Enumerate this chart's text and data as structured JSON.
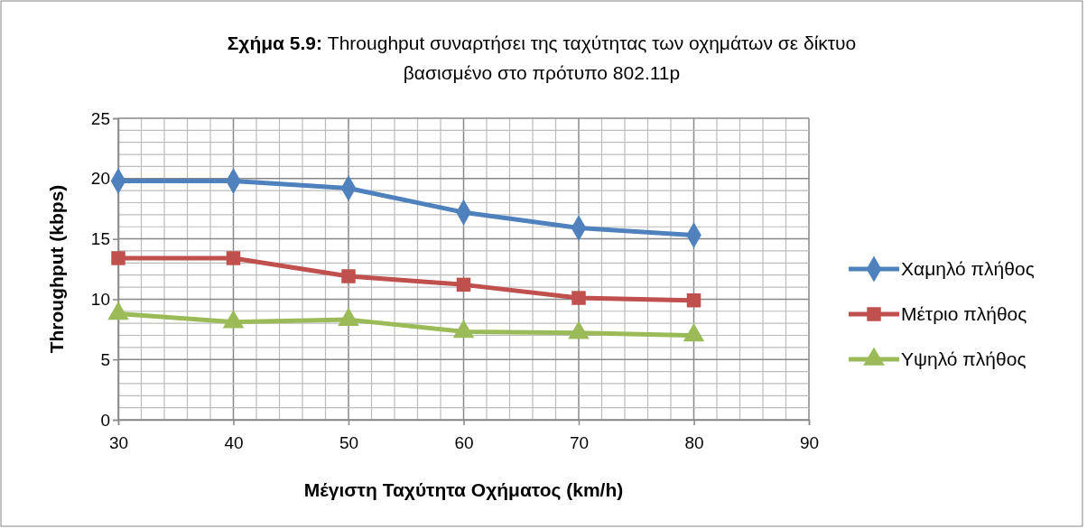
{
  "chart_data": {
    "type": "line",
    "title": "Σχήμα 5.9: Throughput συναρτήσει της ταχύτητας των οχημάτων σε δίκτυο βασισμένο στο πρότυπο 802.11p",
    "xlabel": "Μέγιστη Ταχύτητα Οχήματος (km/h)",
    "ylabel": "Throughput (kbps)",
    "x": [
      30,
      40,
      50,
      60,
      70,
      80
    ],
    "series": [
      {
        "name": "Χαμηλό πλήθος",
        "color": "#4f81bd",
        "marker": "diamond",
        "values": [
          19.8,
          19.8,
          19.2,
          17.2,
          15.9,
          15.3
        ]
      },
      {
        "name": "Μέτριο πλήθος",
        "color": "#c0504d",
        "marker": "square",
        "values": [
          13.4,
          13.4,
          11.9,
          11.2,
          10.1,
          9.9
        ]
      },
      {
        "name": "Υψηλό πλήθος",
        "color": "#9bbb59",
        "marker": "triangle",
        "values": [
          8.8,
          8.1,
          8.3,
          7.3,
          7.2,
          7.0
        ]
      }
    ],
    "xlim": [
      30,
      90
    ],
    "ylim": [
      0,
      25
    ],
    "xticks": [
      30,
      {
        "value": 32,
        "label": null
      },
      {
        "value": 34,
        "label": null
      },
      {
        "value": 36,
        "label": null
      },
      {
        "value": 38,
        "label": null
      },
      40,
      {
        "value": 42,
        "label": null
      },
      {
        "value": 44,
        "label": null
      },
      {
        "value": 46,
        "label": null
      },
      {
        "value": 48,
        "label": null
      },
      50,
      {
        "value": 52,
        "label": null
      },
      {
        "value": 54,
        "label": null
      },
      {
        "value": 56,
        "label": null
      },
      {
        "value": 58,
        "label": null
      },
      60,
      {
        "value": 62,
        "label": null
      },
      {
        "value": 64,
        "label": null
      },
      {
        "value": 66,
        "label": null
      },
      {
        "value": 68,
        "label": null
      },
      70,
      {
        "value": 72,
        "label": null
      },
      {
        "value": 74,
        "label": null
      },
      {
        "value": 76,
        "label": null
      },
      {
        "value": 78,
        "label": null
      },
      80,
      {
        "value": 82,
        "label": null
      },
      {
        "value": 84,
        "label": null
      },
      {
        "value": 86,
        "label": null
      },
      {
        "value": 88,
        "label": null
      },
      90
    ],
    "yticks": [
      0,
      {
        "value": 1,
        "label": null
      },
      {
        "value": 2,
        "label": null
      },
      {
        "value": 3,
        "label": null
      },
      {
        "value": 4,
        "label": null
      },
      5,
      {
        "value": 6,
        "label": null
      },
      {
        "value": 7,
        "label": null
      },
      {
        "value": 8,
        "label": null
      },
      {
        "value": 9,
        "label": null
      },
      10,
      {
        "value": 11,
        "label": null
      },
      {
        "value": 12,
        "label": null
      },
      {
        "value": 13,
        "label": null
      },
      {
        "value": 14,
        "label": null
      },
      15,
      {
        "value": 16,
        "label": null
      },
      {
        "value": 17,
        "label": null
      },
      {
        "value": 18,
        "label": null
      },
      {
        "value": 19,
        "label": null
      },
      20,
      {
        "value": 21,
        "label": null
      },
      {
        "value": 22,
        "label": null
      },
      {
        "value": 23,
        "label": null
      },
      {
        "value": 24,
        "label": null
      },
      25
    ],
    "grid": true,
    "legend": "right",
    "line_style": "solid"
  }
}
